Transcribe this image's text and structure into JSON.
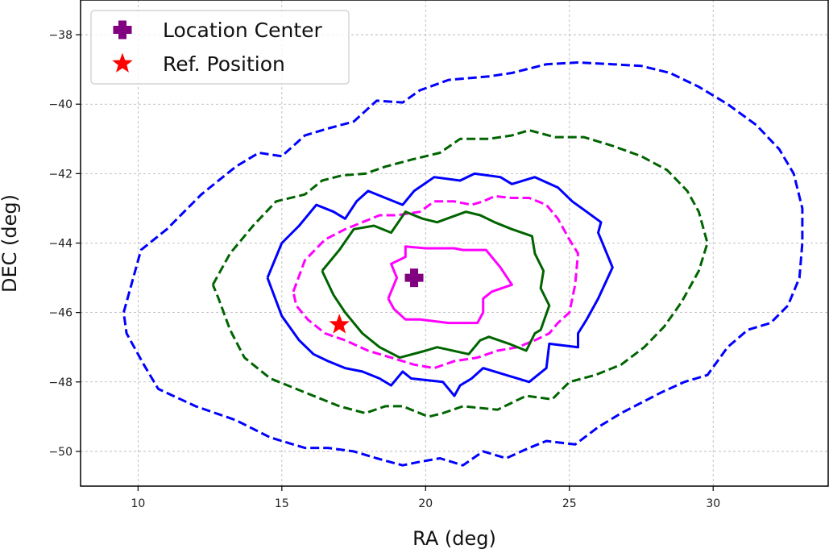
{
  "chart_data": {
    "type": "line",
    "xlabel": "RA (deg)",
    "ylabel": "DEC (deg)",
    "xlim": [
      8,
      34
    ],
    "ylim": [
      -51,
      -37
    ],
    "xticks": [
      10,
      15,
      20,
      25,
      30
    ],
    "yticks": [
      -38,
      -40,
      -42,
      -44,
      -46,
      -48,
      -50
    ],
    "xtick_labels": [
      "10",
      "15",
      "20",
      "25",
      "30"
    ],
    "ytick_labels": [
      "−38",
      "−40",
      "−42",
      "−44",
      "−46",
      "−48",
      "−50"
    ],
    "grid": true,
    "legend_position": "top-left",
    "legend": [
      {
        "label": "Location Center",
        "marker": "plus",
        "color": "#800080"
      },
      {
        "label": "Ref. Position",
        "marker": "star",
        "color": "#ff0000"
      }
    ],
    "points": [
      {
        "name": "Location Center",
        "x": 19.6,
        "y": -45.0,
        "marker": "plus",
        "color": "#800080"
      },
      {
        "name": "Ref. Position",
        "x": 17.0,
        "y": -46.35,
        "marker": "star",
        "color": "#ff0000"
      }
    ],
    "contours": [
      {
        "name": "blue-dashed",
        "color": "#0000ff",
        "style": "dashed",
        "points": [
          [
            9.5,
            -46.0
          ],
          [
            10.1,
            -44.2
          ],
          [
            11.0,
            -43.6
          ],
          [
            12.2,
            -42.6
          ],
          [
            13.4,
            -41.8
          ],
          [
            14.2,
            -41.4
          ],
          [
            15.0,
            -41.5
          ],
          [
            15.8,
            -40.9
          ],
          [
            16.6,
            -40.7
          ],
          [
            17.5,
            -40.5
          ],
          [
            18.3,
            -39.9
          ],
          [
            19.2,
            -39.95
          ],
          [
            19.8,
            -39.6
          ],
          [
            20.8,
            -39.3
          ],
          [
            22.2,
            -39.2
          ],
          [
            23.0,
            -39.1
          ],
          [
            24.2,
            -38.85
          ],
          [
            25.3,
            -38.8
          ],
          [
            26.5,
            -38.85
          ],
          [
            27.5,
            -38.9
          ],
          [
            28.5,
            -39.1
          ],
          [
            29.5,
            -39.5
          ],
          [
            30.5,
            -40.0
          ],
          [
            31.5,
            -40.6
          ],
          [
            32.3,
            -41.3
          ],
          [
            32.8,
            -42.0
          ],
          [
            33.1,
            -43.0
          ],
          [
            33.1,
            -44.0
          ],
          [
            33.0,
            -45.0
          ],
          [
            32.6,
            -45.8
          ],
          [
            32.0,
            -46.3
          ],
          [
            31.2,
            -46.5
          ],
          [
            30.5,
            -47.0
          ],
          [
            29.8,
            -47.8
          ],
          [
            29.0,
            -48.0
          ],
          [
            28.2,
            -48.3
          ],
          [
            27.5,
            -48.6
          ],
          [
            26.8,
            -48.9
          ],
          [
            26.0,
            -49.3
          ],
          [
            25.2,
            -49.8
          ],
          [
            24.2,
            -49.7
          ],
          [
            23.6,
            -49.9
          ],
          [
            22.8,
            -50.2
          ],
          [
            22.0,
            -50.0
          ],
          [
            21.3,
            -50.4
          ],
          [
            20.5,
            -50.2
          ],
          [
            19.8,
            -50.3
          ],
          [
            19.2,
            -50.4
          ],
          [
            18.3,
            -50.2
          ],
          [
            17.5,
            -50.0
          ],
          [
            16.6,
            -49.9
          ],
          [
            15.8,
            -49.9
          ],
          [
            14.6,
            -49.6
          ],
          [
            13.4,
            -49.1
          ],
          [
            12.0,
            -48.7
          ],
          [
            10.7,
            -48.2
          ],
          [
            10.2,
            -47.5
          ],
          [
            9.6,
            -46.6
          ],
          [
            9.5,
            -46.0
          ]
        ]
      },
      {
        "name": "green-dashed",
        "color": "#006400",
        "style": "dashed",
        "points": [
          [
            12.6,
            -45.2
          ],
          [
            13.2,
            -44.3
          ],
          [
            14.0,
            -43.5
          ],
          [
            14.8,
            -42.8
          ],
          [
            15.8,
            -42.6
          ],
          [
            16.4,
            -42.2
          ],
          [
            17.1,
            -42.05
          ],
          [
            17.9,
            -42.0
          ],
          [
            18.6,
            -41.8
          ],
          [
            19.5,
            -41.6
          ],
          [
            20.5,
            -41.4
          ],
          [
            21.2,
            -41.0
          ],
          [
            22.2,
            -41.0
          ],
          [
            23.0,
            -40.9
          ],
          [
            23.6,
            -40.75
          ],
          [
            24.5,
            -40.95
          ],
          [
            25.5,
            -40.95
          ],
          [
            26.5,
            -41.2
          ],
          [
            27.5,
            -41.5
          ],
          [
            28.4,
            -41.9
          ],
          [
            29.1,
            -42.5
          ],
          [
            29.5,
            -43.1
          ],
          [
            29.8,
            -44.0
          ],
          [
            29.5,
            -44.8
          ],
          [
            28.9,
            -45.7
          ],
          [
            28.3,
            -46.4
          ],
          [
            27.6,
            -47.0
          ],
          [
            26.8,
            -47.5
          ],
          [
            25.9,
            -47.8
          ],
          [
            25.0,
            -48.0
          ],
          [
            24.4,
            -48.5
          ],
          [
            23.5,
            -48.4
          ],
          [
            22.5,
            -48.8
          ],
          [
            21.3,
            -48.7
          ],
          [
            20.6,
            -48.9
          ],
          [
            20.1,
            -49.0
          ],
          [
            19.2,
            -48.7
          ],
          [
            18.6,
            -48.7
          ],
          [
            17.9,
            -48.9
          ],
          [
            17.0,
            -48.7
          ],
          [
            15.8,
            -48.3
          ],
          [
            14.6,
            -47.9
          ],
          [
            13.7,
            -47.3
          ],
          [
            13.2,
            -46.5
          ],
          [
            12.8,
            -45.6
          ],
          [
            12.6,
            -45.2
          ]
        ]
      },
      {
        "name": "blue-solid",
        "color": "#0000ff",
        "style": "solid",
        "points": [
          [
            14.5,
            -45.0
          ],
          [
            15.0,
            -44.0
          ],
          [
            15.6,
            -43.5
          ],
          [
            16.2,
            -42.9
          ],
          [
            16.8,
            -43.1
          ],
          [
            17.2,
            -43.3
          ],
          [
            17.6,
            -42.8
          ],
          [
            18.0,
            -42.5
          ],
          [
            18.6,
            -42.7
          ],
          [
            19.2,
            -42.9
          ],
          [
            19.6,
            -42.5
          ],
          [
            20.3,
            -42.1
          ],
          [
            21.2,
            -42.2
          ],
          [
            21.7,
            -42.0
          ],
          [
            22.6,
            -42.1
          ],
          [
            23.0,
            -42.3
          ],
          [
            23.8,
            -42.1
          ],
          [
            24.6,
            -42.4
          ],
          [
            25.1,
            -42.8
          ],
          [
            25.6,
            -43.1
          ],
          [
            26.1,
            -43.4
          ],
          [
            26.0,
            -43.7
          ],
          [
            26.5,
            -44.7
          ],
          [
            26.0,
            -45.6
          ],
          [
            25.6,
            -46.2
          ],
          [
            25.3,
            -46.6
          ],
          [
            25.3,
            -47.0
          ],
          [
            24.3,
            -46.9
          ],
          [
            24.2,
            -47.6
          ],
          [
            23.6,
            -48.0
          ],
          [
            22.0,
            -47.6
          ],
          [
            21.6,
            -47.9
          ],
          [
            21.2,
            -48.1
          ],
          [
            21.0,
            -48.4
          ],
          [
            20.6,
            -48.0
          ],
          [
            19.5,
            -47.9
          ],
          [
            19.2,
            -47.7
          ],
          [
            18.8,
            -48.1
          ],
          [
            18.4,
            -47.9
          ],
          [
            17.8,
            -47.7
          ],
          [
            17.2,
            -47.6
          ],
          [
            16.6,
            -47.4
          ],
          [
            16.1,
            -47.2
          ],
          [
            15.6,
            -46.8
          ],
          [
            15.0,
            -46.1
          ],
          [
            14.5,
            -45.0
          ]
        ]
      },
      {
        "name": "magenta-dashed",
        "color": "#ff00ff",
        "style": "dashed",
        "points": [
          [
            15.4,
            -45.4
          ],
          [
            15.8,
            -44.5
          ],
          [
            16.5,
            -43.9
          ],
          [
            17.2,
            -43.6
          ],
          [
            17.8,
            -43.4
          ],
          [
            18.4,
            -43.2
          ],
          [
            19.0,
            -43.2
          ],
          [
            19.8,
            -43.1
          ],
          [
            20.3,
            -42.8
          ],
          [
            21.0,
            -42.8
          ],
          [
            21.6,
            -42.9
          ],
          [
            22.0,
            -42.8
          ],
          [
            22.4,
            -42.65
          ],
          [
            23.0,
            -42.7
          ],
          [
            23.6,
            -42.7
          ],
          [
            24.2,
            -42.9
          ],
          [
            24.6,
            -43.3
          ],
          [
            25.0,
            -43.9
          ],
          [
            25.3,
            -44.3
          ],
          [
            25.2,
            -45.2
          ],
          [
            25.0,
            -46.0
          ],
          [
            24.6,
            -46.3
          ],
          [
            24.3,
            -46.6
          ],
          [
            23.8,
            -46.8
          ],
          [
            23.2,
            -47.0
          ],
          [
            22.5,
            -47.1
          ],
          [
            21.8,
            -47.3
          ],
          [
            21.0,
            -47.4
          ],
          [
            20.3,
            -47.6
          ],
          [
            19.6,
            -47.5
          ],
          [
            18.8,
            -47.3
          ],
          [
            18.0,
            -47.1
          ],
          [
            17.2,
            -46.8
          ],
          [
            16.5,
            -46.6
          ],
          [
            15.9,
            -46.2
          ],
          [
            15.5,
            -45.8
          ],
          [
            15.4,
            -45.4
          ]
        ]
      },
      {
        "name": "green-solid",
        "color": "#006400",
        "style": "solid",
        "points": [
          [
            16.4,
            -44.8
          ],
          [
            17.0,
            -44.2
          ],
          [
            17.5,
            -43.6
          ],
          [
            18.2,
            -43.5
          ],
          [
            18.8,
            -43.7
          ],
          [
            19.3,
            -43.1
          ],
          [
            19.9,
            -43.3
          ],
          [
            20.4,
            -43.4
          ],
          [
            21.4,
            -43.1
          ],
          [
            21.9,
            -43.2
          ],
          [
            22.4,
            -43.4
          ],
          [
            23.0,
            -43.6
          ],
          [
            23.7,
            -43.8
          ],
          [
            23.8,
            -44.3
          ],
          [
            24.1,
            -44.8
          ],
          [
            24.0,
            -45.3
          ],
          [
            24.3,
            -45.8
          ],
          [
            24.0,
            -46.5
          ],
          [
            23.8,
            -46.6
          ],
          [
            23.5,
            -47.1
          ],
          [
            22.9,
            -46.9
          ],
          [
            22.2,
            -46.7
          ],
          [
            21.9,
            -46.8
          ],
          [
            21.5,
            -47.2
          ],
          [
            20.4,
            -47.0
          ],
          [
            20.0,
            -47.1
          ],
          [
            19.1,
            -47.3
          ],
          [
            18.4,
            -47.0
          ],
          [
            17.8,
            -46.6
          ],
          [
            17.2,
            -46.0
          ],
          [
            16.8,
            -45.5
          ],
          [
            16.4,
            -44.8
          ]
        ]
      },
      {
        "name": "magenta-solid",
        "color": "#ff00ff",
        "style": "solid",
        "points": [
          [
            18.7,
            -45.6
          ],
          [
            19.0,
            -45.0
          ],
          [
            18.8,
            -44.6
          ],
          [
            19.3,
            -44.4
          ],
          [
            19.3,
            -44.1
          ],
          [
            20.0,
            -44.15
          ],
          [
            21.0,
            -44.15
          ],
          [
            21.3,
            -44.2
          ],
          [
            22.1,
            -44.2
          ],
          [
            22.6,
            -44.7
          ],
          [
            23.0,
            -45.2
          ],
          [
            22.3,
            -45.4
          ],
          [
            22.0,
            -45.6
          ],
          [
            22.0,
            -46.0
          ],
          [
            21.8,
            -46.3
          ],
          [
            20.8,
            -46.3
          ],
          [
            19.8,
            -46.2
          ],
          [
            19.3,
            -46.2
          ],
          [
            18.9,
            -45.9
          ],
          [
            18.7,
            -45.6
          ]
        ]
      }
    ]
  }
}
